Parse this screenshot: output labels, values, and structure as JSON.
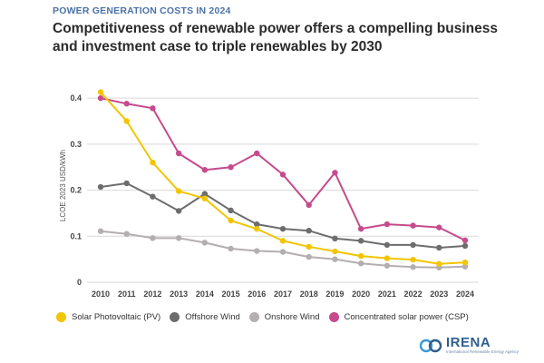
{
  "header": {
    "kicker": "POWER GENERATION COSTS IN 2024",
    "title": "Competitiveness of renewable power offers a compelling business and investment case to triple renewables by 2030"
  },
  "chart_data": {
    "type": "line",
    "ylabel": "LCOE 2023 USD/kWh",
    "xlabel": "",
    "ylim": [
      0,
      0.42
    ],
    "yticks": [
      0,
      0.1,
      0.2,
      0.3,
      0.4
    ],
    "ytick_labels": [
      "0",
      "0.1",
      "0.2",
      "0.3",
      "0.4"
    ],
    "categories": [
      "2010",
      "2011",
      "2012",
      "2013",
      "2014",
      "2015",
      "2016",
      "2017",
      "2018",
      "2019",
      "2020",
      "2021",
      "2022",
      "2023",
      "2024"
    ],
    "grid": true,
    "legend_position": "bottom",
    "series": [
      {
        "name": "Solar Photovoltaic (PV)",
        "color": "#f2c500",
        "values": [
          0.413,
          0.35,
          0.26,
          0.198,
          0.182,
          0.134,
          0.116,
          0.09,
          0.077,
          0.067,
          0.057,
          0.052,
          0.049,
          0.04,
          0.043
        ]
      },
      {
        "name": "Offshore Wind",
        "color": "#6d6d6d",
        "values": [
          0.207,
          0.215,
          0.186,
          0.155,
          0.192,
          0.156,
          0.126,
          0.116,
          0.112,
          0.095,
          0.09,
          0.081,
          0.081,
          0.075,
          0.079
        ]
      },
      {
        "name": "Onshore Wind",
        "color": "#b3aeb0",
        "values": [
          0.111,
          0.105,
          0.096,
          0.096,
          0.086,
          0.073,
          0.068,
          0.066,
          0.055,
          0.05,
          0.041,
          0.036,
          0.033,
          0.032,
          0.034
        ]
      },
      {
        "name": "Concentrated solar power (CSP)",
        "color": "#c64b8c",
        "values": [
          0.4,
          0.388,
          0.378,
          0.28,
          0.244,
          0.25,
          0.28,
          0.234,
          0.168,
          0.238,
          0.116,
          0.126,
          0.123,
          0.119,
          0.091
        ]
      }
    ]
  },
  "logo": {
    "name": "IRENA",
    "subtitle": "International Renewable Energy Agency"
  }
}
